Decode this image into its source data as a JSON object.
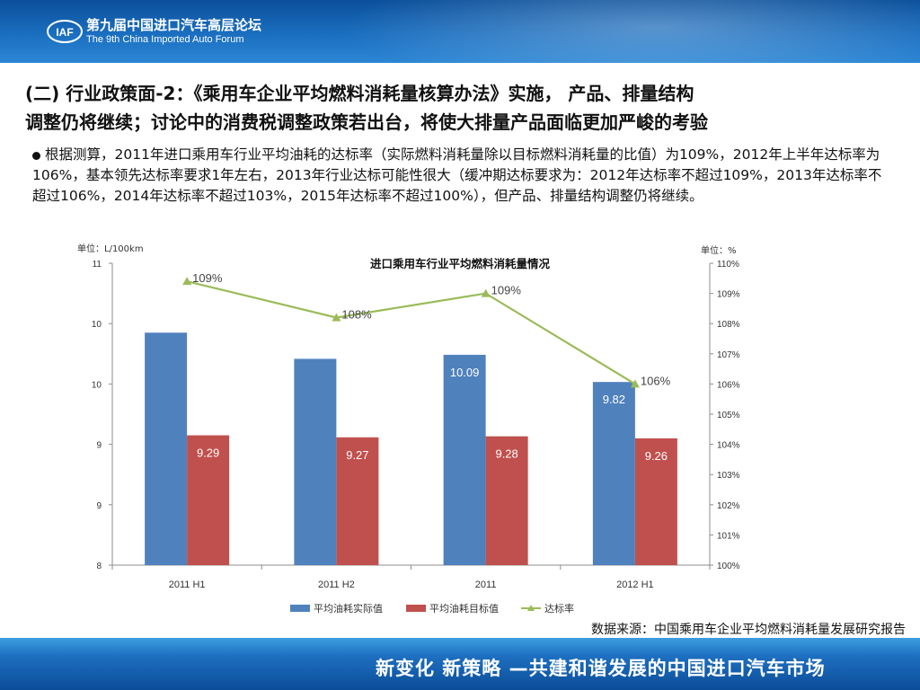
{
  "header": {
    "forum_name_cn": "第九届中国进口汽车高层论坛",
    "forum_name_en": "The 9th China Imported Auto Forum",
    "logo_text": "IAF"
  },
  "slide": {
    "title_line1": "(二) 行业政策面-2：《乘用车企业平均燃料消耗量核算办法》实施， 产品、排量结构",
    "title_line2": "调整仍将继续；讨论中的消费税调整政策若出台，将使大排量产品面临更加严峻的考验",
    "bullet": "根据测算，2011年进口乘用车行业平均油耗的达标率（实际燃料消耗量除以目标燃料消耗量的比值）为109%，2012年上半年达标率为106%，基本领先达标率要求1年左右，2013年行业达标可能性很大（缓冲期达标要求为：2012年达标率不超过109%，2013年达标率不超过106%，2014年达标率不超过103%，2015年达标率不超过100%），但产品、排量结构调整仍将继续。",
    "source": "数据来源：中国乘用车企业平均燃料消耗量发展研究报告"
  },
  "footer": {
    "slogan": "新变化  新策略 —共建和谐发展的中国进口汽车市场"
  },
  "chart_data": {
    "type": "bar",
    "title": "进口乘用车行业平均燃料消耗量情况",
    "left_unit": "单位：L/100km",
    "right_unit": "单位：%",
    "categories": [
      "2011 H1",
      "2011 H2",
      "2011",
      "2012 H1"
    ],
    "y_tick_labels": [
      "11",
      "10",
      "10",
      "9",
      "9",
      "8"
    ],
    "y_range": [
      8,
      11
    ],
    "y2_tick_labels": [
      "110%",
      "109%",
      "108%",
      "107%",
      "106%",
      "105%",
      "104%",
      "103%",
      "102%",
      "101%",
      "100%"
    ],
    "y2_range": [
      100,
      110
    ],
    "series": [
      {
        "name": "平均油耗实际值",
        "values": [
          10.31,
          10.05,
          10.09,
          9.82
        ],
        "data_labels": [
          "",
          "",
          "10.09",
          "9.82"
        ],
        "color": "#4f81bd",
        "axis": "left"
      },
      {
        "name": "平均油耗目标值",
        "values": [
          9.29,
          9.27,
          9.28,
          9.26
        ],
        "data_labels": [
          "9.29",
          "9.27",
          "9.28",
          "9.26"
        ],
        "color": "#c0504d",
        "axis": "left"
      },
      {
        "name": "达标率",
        "type": "line",
        "values": [
          109.4,
          108.2,
          109.0,
          106.0
        ],
        "data_labels": [
          "109%",
          "108%",
          "109%",
          "106%"
        ],
        "color": "#9bbb59",
        "axis": "right"
      }
    ],
    "legend_position": "bottom",
    "grid": false
  }
}
